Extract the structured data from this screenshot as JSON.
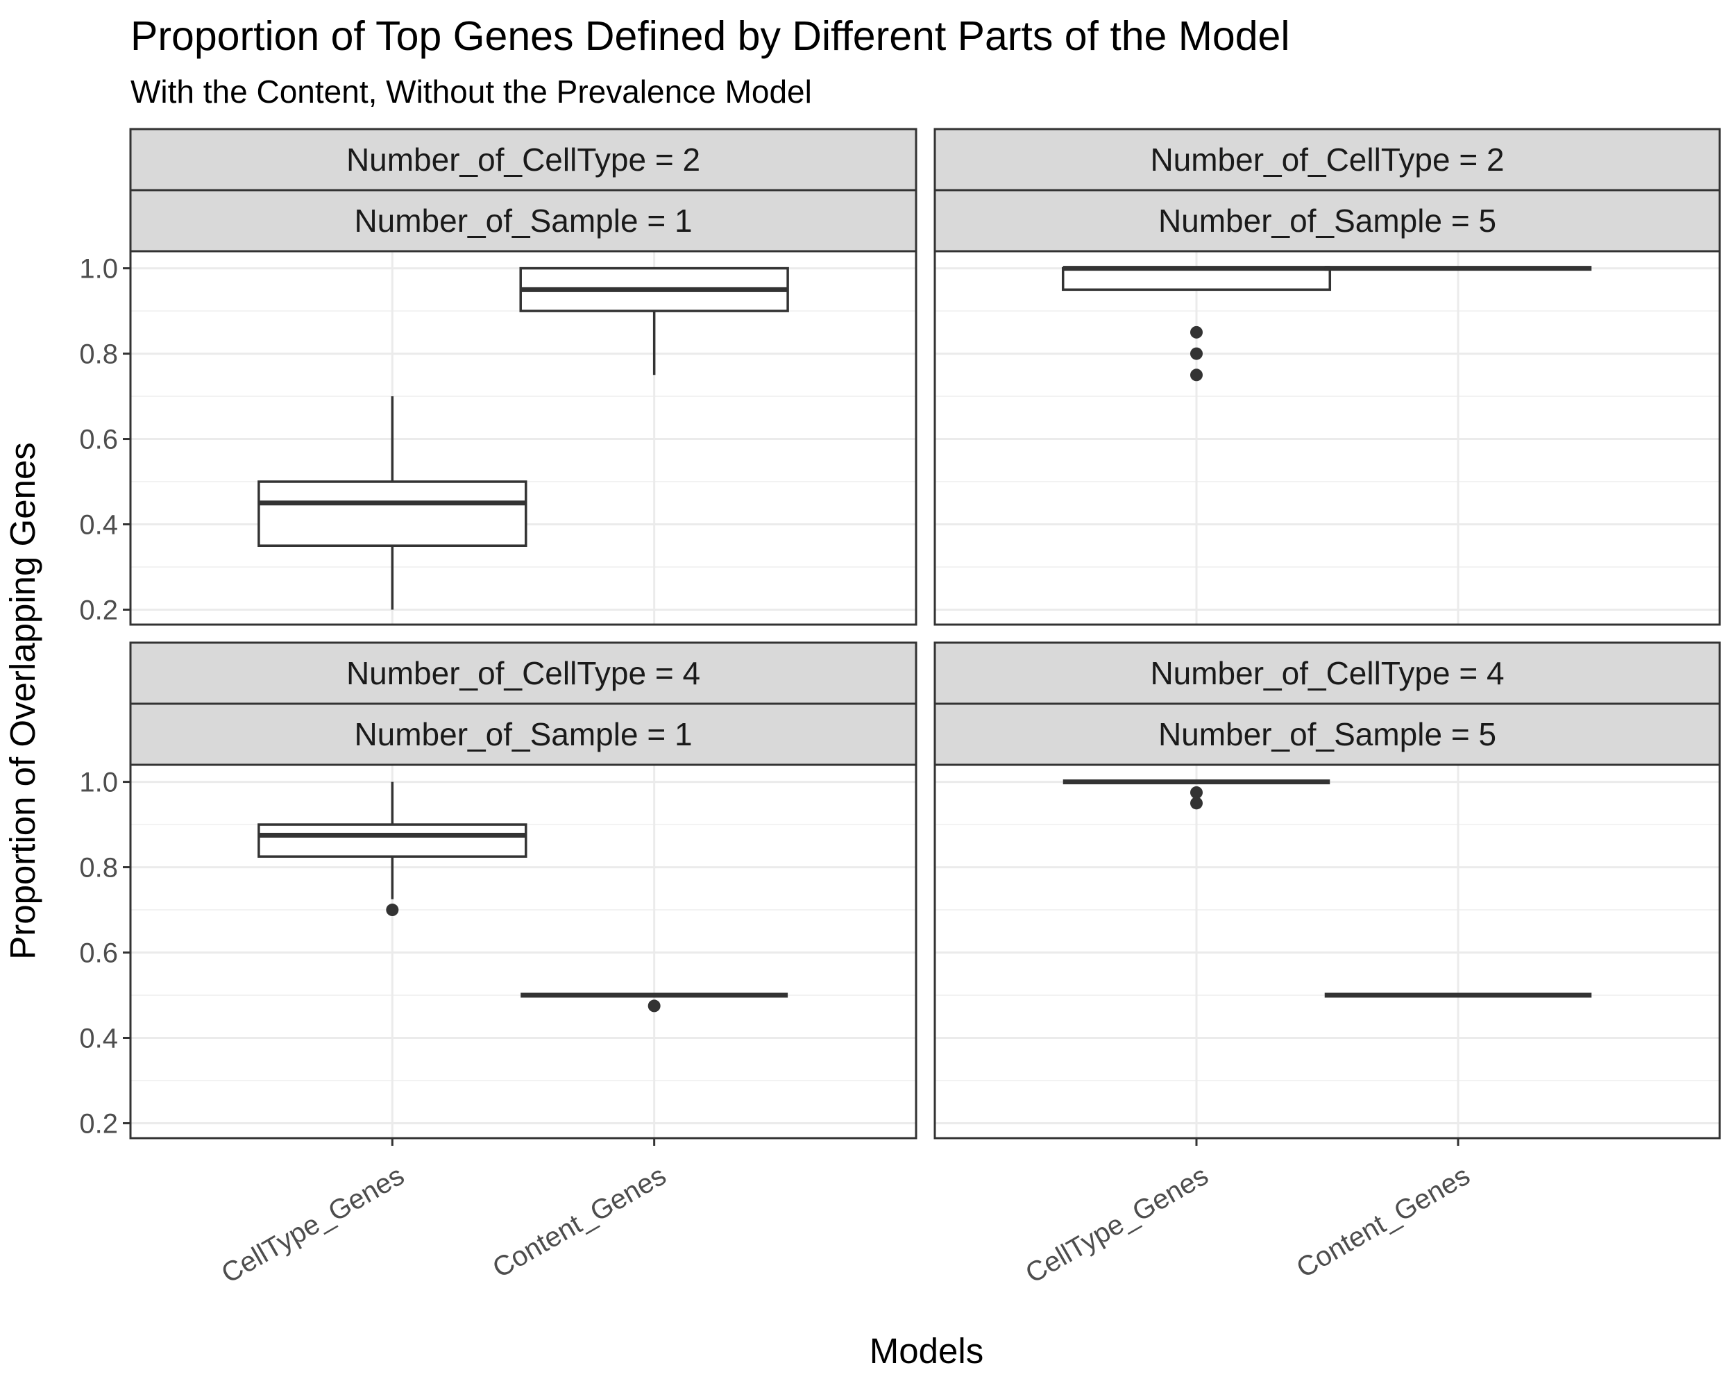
{
  "chart_data": {
    "type": "boxplot",
    "title": "Proportion of Top Genes Defined by Different Parts of the Model",
    "subtitle": "With the Content, Without the Prevalence Model",
    "xlabel": "Models",
    "ylabel": "Proportion of Overlapping Genes",
    "categories": [
      "CellType_Genes",
      "Content_Genes"
    ],
    "ylim": [
      0.165,
      1.04
    ],
    "yticks": [
      0.2,
      0.4,
      0.6,
      0.8,
      1.0
    ],
    "ytick_labels": [
      "0.2",
      "0.4",
      "0.6",
      "0.8",
      "1.0"
    ],
    "grid": true,
    "panels": [
      {
        "strip": [
          "Number_of_CellType = 2",
          "Number_of_Sample = 1"
        ],
        "boxes": [
          {
            "category": "CellType_Genes",
            "whisker_low": 0.2,
            "q1": 0.35,
            "median": 0.45,
            "q3": 0.5,
            "whisker_high": 0.7,
            "outliers": []
          },
          {
            "category": "Content_Genes",
            "whisker_low": 0.75,
            "q1": 0.9,
            "median": 0.95,
            "q3": 1.0,
            "whisker_high": 1.0,
            "outliers": []
          }
        ]
      },
      {
        "strip": [
          "Number_of_CellType = 2",
          "Number_of_Sample = 5"
        ],
        "boxes": [
          {
            "category": "CellType_Genes",
            "whisker_low": 0.95,
            "q1": 0.95,
            "median": 1.0,
            "q3": 1.0,
            "whisker_high": 1.0,
            "outliers": [
              0.85,
              0.8,
              0.75
            ]
          },
          {
            "category": "Content_Genes",
            "whisker_low": 1.0,
            "q1": 1.0,
            "median": 1.0,
            "q3": 1.0,
            "whisker_high": 1.0,
            "outliers": []
          }
        ]
      },
      {
        "strip": [
          "Number_of_CellType = 4",
          "Number_of_Sample = 1"
        ],
        "boxes": [
          {
            "category": "CellType_Genes",
            "whisker_low": 0.725,
            "q1": 0.825,
            "median": 0.875,
            "q3": 0.9,
            "whisker_high": 1.0,
            "outliers": [
              0.7
            ]
          },
          {
            "category": "Content_Genes",
            "whisker_low": 0.5,
            "q1": 0.5,
            "median": 0.5,
            "q3": 0.5,
            "whisker_high": 0.5,
            "outliers": [
              0.475
            ]
          }
        ]
      },
      {
        "strip": [
          "Number_of_CellType = 4",
          "Number_of_Sample = 5"
        ],
        "boxes": [
          {
            "category": "CellType_Genes",
            "whisker_low": 1.0,
            "q1": 1.0,
            "median": 1.0,
            "q3": 1.0,
            "whisker_high": 1.0,
            "outliers": [
              0.975,
              0.95
            ]
          },
          {
            "category": "Content_Genes",
            "whisker_low": 0.5,
            "q1": 0.5,
            "median": 0.5,
            "q3": 0.5,
            "whisker_high": 0.5,
            "outliers": []
          }
        ]
      }
    ],
    "colors": {
      "box_stroke": "#333333",
      "box_fill": "#ffffff",
      "strip_fill": "#d9d9d9",
      "grid_major": "#ebebeb",
      "grid_minor": "#f2f2f2",
      "tick_text": "#4d4d4d"
    }
  }
}
